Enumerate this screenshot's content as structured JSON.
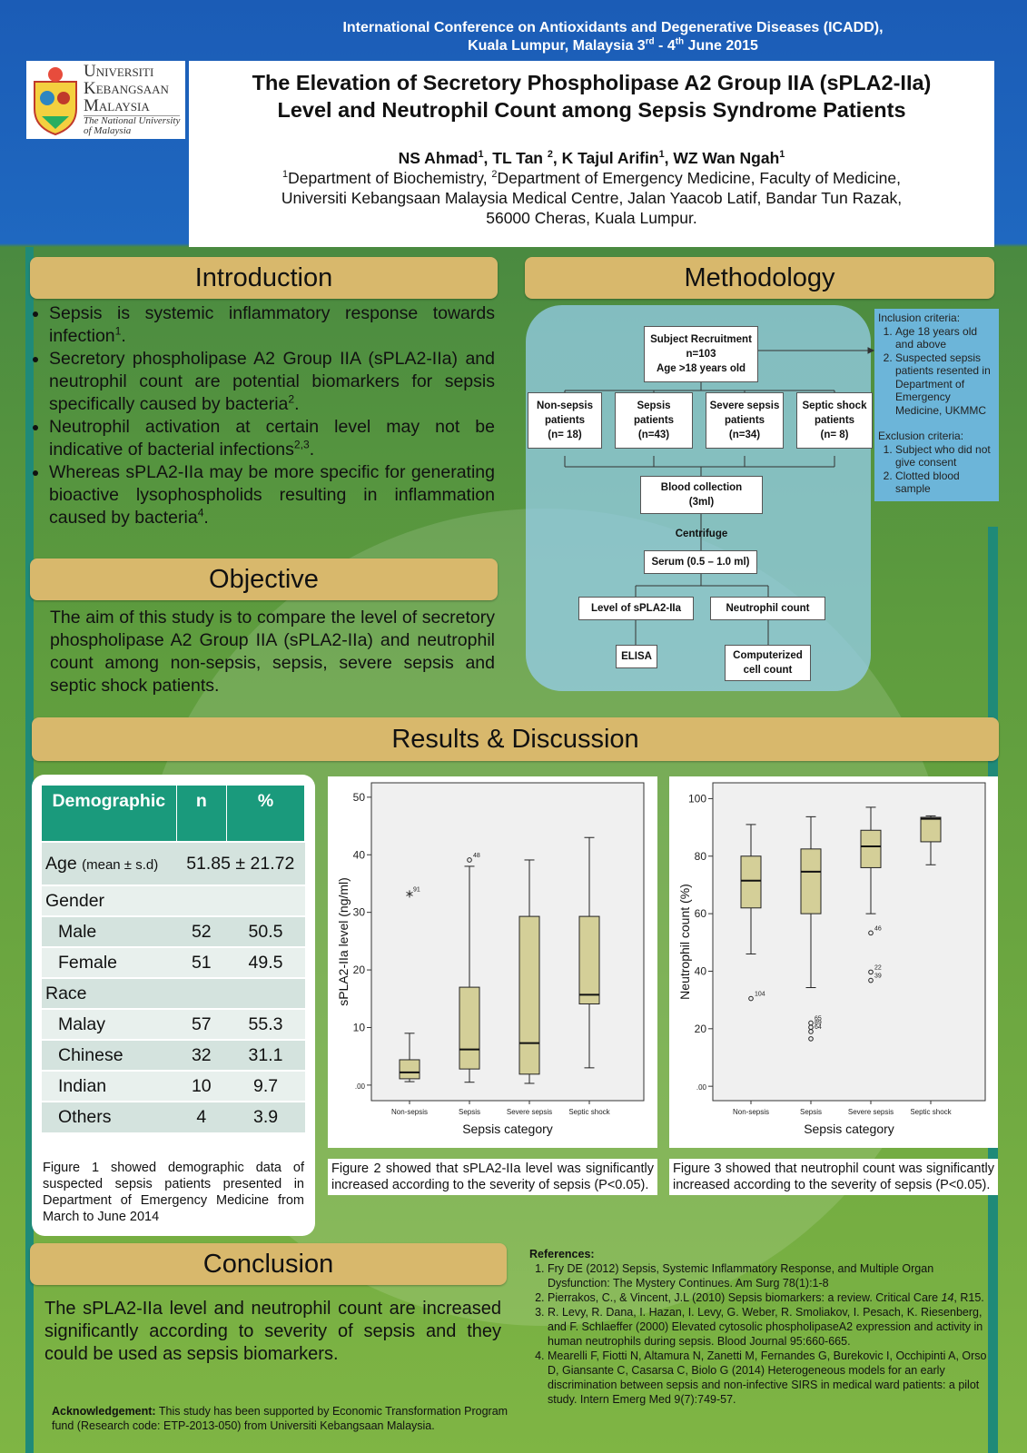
{
  "header": {
    "conference": [
      [
        "International Conference on Antioxidants and Degenerative Diseases (ICADD),"
      ],
      [
        "Kuala Lumpur, Malaysia 3",
        {
          "sup": "rd"
        },
        " - 4",
        {
          "sup": "th"
        },
        " June 2015"
      ]
    ]
  },
  "logo": {
    "lines": [
      "Universiti",
      "Kebangsaan",
      "Malaysia"
    ],
    "tagline": [
      "The National University",
      "of Malaysia"
    ]
  },
  "title": [
    "The Elevation of Secretory Phospholipase A2 Group IIA (sPLA2-IIa)",
    "Level and Neutrophil Count among Sepsis Syndrome Patients"
  ],
  "authors": [
    "NS Ahmad",
    {
      "sup": "1"
    },
    ", TL Tan ",
    {
      "sup": "2"
    },
    ", K Tajul Arifin",
    {
      "sup": "1"
    },
    ", WZ Wan Ngah",
    {
      "sup": "1"
    }
  ],
  "affiliation": [
    [
      {
        "sup": "1"
      },
      "Department of Biochemistry, ",
      {
        "sup": "2"
      },
      "Department of Emergency Medicine, Faculty of Medicine,"
    ],
    [
      "Universiti Kebangsaan Malaysia Medical Centre, Jalan Yaacob Latif, Bandar Tun Razak,"
    ],
    [
      "56000 Cheras, Kuala Lumpur."
    ]
  ],
  "introduction": {
    "heading": "Introduction",
    "bullets": [
      [
        "Sepsis is systemic inflammatory response towards infection",
        {
          "sup": "1"
        },
        "."
      ],
      [
        "Secretory phospholipase A2 Group IIA (sPLA2-IIa) and neutrophil count are potential biomarkers for sepsis specifically caused by bacteria",
        {
          "sup": "2"
        },
        "."
      ],
      [
        "Neutrophil activation at certain level may not be indicative of bacterial infections",
        {
          "sup": "2,3"
        },
        "."
      ],
      [
        "Whereas sPLA2-IIa may be more specific for generating bioactive lysophospholids resulting in inflammation caused by bacteria",
        {
          "sup": "4"
        },
        "."
      ]
    ]
  },
  "objective": {
    "heading": "Objective",
    "text": "The aim of this study is to compare the level of secretory phospholipase A2 Group IIA (sPLA2-IIa) and neutrophil count among non-sepsis, sepsis, severe sepsis and septic shock patients."
  },
  "methodology": {
    "heading": "Methodology",
    "nodes": [
      {
        "label": [
          "Subject Recruitment",
          "n=103",
          "Age >18 years old"
        ]
      },
      {
        "label": [
          "Non-sepsis",
          "patients",
          "(n= 18)"
        ]
      },
      {
        "label": [
          "Sepsis",
          "patients",
          "(n=43)"
        ]
      },
      {
        "label": [
          "Severe sepsis",
          "patients",
          "(n=34)"
        ]
      },
      {
        "label": [
          "Septic shock",
          "patients",
          "(n= 8)"
        ]
      },
      {
        "label": [
          "Blood collection",
          "(3ml)"
        ]
      },
      {
        "label": [
          "Centrifuge"
        ]
      },
      {
        "label": [
          "Serum (0.5 – 1.0 ml)"
        ]
      },
      {
        "label": [
          "Level of  sPLA2-IIa"
        ]
      },
      {
        "label": [
          "Neutrophil count"
        ]
      },
      {
        "label": [
          "ELISA"
        ]
      },
      {
        "label": [
          "Computerized",
          "cell count"
        ]
      }
    ],
    "inclusion": {
      "title": "Inclusion criteria:",
      "items": [
        "Age 18 years old and above",
        "Suspected sepsis patients resented in Department of Emergency Medicine, UKMMC"
      ]
    },
    "exclusion": {
      "title": "Exclusion criteria:",
      "items": [
        "Subject who did not give consent",
        "Clotted blood sample"
      ]
    }
  },
  "results": {
    "heading": "Results & Discussion",
    "table": {
      "columns": [
        "Demographic",
        "n",
        "%"
      ],
      "rows": [
        {
          "label": "Age",
          "note": "(mean ± s.d)",
          "value": "51.85 ± 21.72"
        },
        {
          "label": "Gender"
        },
        {
          "label": "Male",
          "n": 52,
          "pct": 50.5
        },
        {
          "label": "Female",
          "n": 51,
          "pct": 49.5
        },
        {
          "label": "Race"
        },
        {
          "label": "Malay",
          "n": 57,
          "pct": 55.3
        },
        {
          "label": "Chinese",
          "n": 32,
          "pct": 31.1
        },
        {
          "label": "Indian",
          "n": 10,
          "pct": 9.7
        },
        {
          "label": "Others",
          "n": 4,
          "pct": 3.9
        }
      ]
    },
    "figures": [
      {
        "type": "box",
        "y_label": "sPLA2-IIa level (ng/ml)",
        "x_label": "Sepsis category",
        "color": "#d4cf98",
        "categories": [
          "Non-sepsis",
          "Sepsis",
          "Severe sepsis",
          "Septic shock"
        ],
        "ylim": [
          -2.7,
          52.5
        ],
        "yticks": [
          {
            "value": 0,
            "label": ".00"
          },
          10,
          20,
          30,
          40,
          50
        ],
        "boxes": [
          {
            "min": 0.6,
            "q1": 1.1,
            "median": 2.2,
            "q3": 4.4,
            "max": 9,
            "outliers": [
              {
                "value": 33.2,
                "label": "91",
                "marker": "star"
              }
            ]
          },
          {
            "min": 0.5,
            "q1": 2.8,
            "median": 6.2,
            "q3": 17,
            "max": 38,
            "outliers": [
              {
                "value": 39.1,
                "label": "48",
                "marker": "circle"
              }
            ]
          },
          {
            "min": 0.3,
            "q1": 1.9,
            "median": 7.3,
            "q3": 29.3,
            "max": 39.1,
            "outliers": []
          },
          {
            "min": 3,
            "q1": 14.1,
            "median": 15.7,
            "q3": 29.3,
            "max": 43,
            "outliers": []
          }
        ]
      },
      {
        "type": "box",
        "y_label": "Neutrophil count (%)",
        "x_label": "Sepsis category",
        "color": "#d4cf98",
        "categories": [
          "Non-sepsis",
          "Sepsis",
          "Severe sepsis",
          "Septic shock"
        ],
        "ylim": [
          -5,
          105.5
        ],
        "yticks": [
          {
            "value": 0,
            "label": ".00"
          },
          20,
          40,
          60,
          80,
          100
        ],
        "boxes": [
          {
            "min": 46,
            "q1": 62,
            "median": 71.5,
            "q3": 80,
            "max": 91,
            "outliers": [
              {
                "value": 30.5,
                "label": "104",
                "marker": "circle"
              }
            ]
          },
          {
            "min": 34.3,
            "q1": 60,
            "median": 74.6,
            "q3": 82.5,
            "max": 93.7,
            "outliers": [
              {
                "value": 22,
                "label": "65",
                "marker": "circle"
              },
              {
                "value": 20.5,
                "label": "89",
                "marker": "circle"
              },
              {
                "value": 19,
                "label": "64",
                "marker": "circle"
              },
              {
                "value": 16.5,
                "marker": "circle"
              }
            ]
          },
          {
            "min": 60,
            "q1": 76,
            "median": 83.4,
            "q3": 89,
            "max": 97,
            "outliers": [
              {
                "value": 53.3,
                "label": "46",
                "marker": "circle"
              },
              {
                "value": 39.7,
                "label": "22",
                "marker": "circle"
              },
              {
                "value": 36.8,
                "label": "39",
                "marker": "circle"
              }
            ]
          },
          {
            "min": 77,
            "q1": 85,
            "median": 93,
            "q3": 93.5,
            "max": 94,
            "outliers": []
          }
        ]
      }
    ],
    "captions": [
      "Figure 1 showed demographic data of suspected sepsis patients presented in Department of Emergency Medicine from March to June 2014",
      "Figure 2 showed that sPLA2-IIa level was significantly increased according to the severity of sepsis (P<0.05).",
      "Figure 3 showed that neutrophil count was significantly increased according to the severity of sepsis (P<0.05)."
    ]
  },
  "conclusion": {
    "heading": "Conclusion",
    "text": "The sPLA2-IIa level and neutrophil count are increased significantly according to severity of sepsis and they could be used as sepsis biomarkers."
  },
  "acknowledgement": [
    {
      "b": "Acknowledgement:"
    },
    " This study has been supported by Economic Transformation Program fund (Research code: ETP-2013-050) from Universiti Kebangsaan Malaysia."
  ],
  "references": {
    "title": "References:",
    "items": [
      [
        "Fry DE (2012) Sepsis, Systemic Inflammatory Response, and Multiple Organ Dysfunction: The Mystery Continues. Am Surg 78(1):1-8"
      ],
      [
        "Pierrakos, C., & Vincent, J.L (2010) Sepsis biomarkers: a review. Critical Care ",
        {
          "i": "14"
        },
        ", R15."
      ],
      [
        "R. Levy, R. Dana, I. Hazan, I. Levy, G. Weber, R. Smoliakov, I. Pesach, K. Riesenberg, and F. Schlaeffer (2000) Elevated cytosolic phospholipaseA2 expression and activity in human neutrophils during sepsis. Blood Journal 95:660-665."
      ],
      [
        "Mearelli F, Fiotti N, Altamura N, Zanetti M, Fernandes G, Burekovic I, Occhipinti A, Orso D, Giansante C, Casarsa C, Biolo G (2014) Heterogeneous models for an early discrimination between sepsis and non-infective SIRS in medical ward patients: a pilot study. Intern Emerg Med  9(7):749-57."
      ]
    ]
  }
}
